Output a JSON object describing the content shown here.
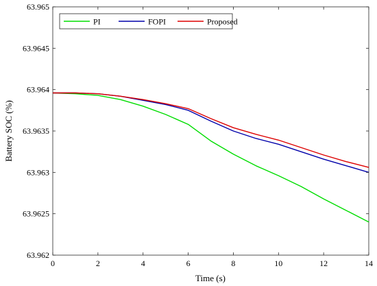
{
  "chart_data": {
    "type": "line",
    "xlabel": "Time (s)",
    "ylabel": "Battery SOC (%)",
    "xlim": [
      0,
      14
    ],
    "ylim": [
      63.962,
      63.965
    ],
    "xticks": [
      0,
      2,
      4,
      6,
      8,
      10,
      12,
      14
    ],
    "xtick_labels": [
      "0",
      "2",
      "4",
      "6",
      "8",
      "10",
      "12",
      "14"
    ],
    "yticks": [
      63.962,
      63.9625,
      63.963,
      63.9635,
      63.964,
      63.9645,
      63.965
    ],
    "ytick_labels": [
      "63.962",
      "63.9625",
      "63.963",
      "63.9635",
      "63.964",
      "63.9645",
      "63.965"
    ],
    "grid": false,
    "legend_position": "top-left",
    "series": [
      {
        "name": "PI",
        "color": "#00dd00",
        "x": [
          0,
          1,
          2,
          3,
          4,
          5,
          6,
          7,
          8,
          9,
          10,
          11,
          12,
          13,
          14
        ],
        "y": [
          63.96396,
          63.96395,
          63.96393,
          63.96388,
          63.9638,
          63.9637,
          63.96358,
          63.96338,
          63.96322,
          63.96308,
          63.96296,
          63.96283,
          63.96268,
          63.96254,
          63.9624
        ]
      },
      {
        "name": "FOPI",
        "color": "#0000aa",
        "x": [
          0,
          1,
          2,
          3,
          4,
          5,
          6,
          7,
          8,
          9,
          10,
          11,
          12,
          13,
          14
        ],
        "y": [
          63.96396,
          63.96396,
          63.96395,
          63.96392,
          63.96387,
          63.96382,
          63.96375,
          63.96362,
          63.9635,
          63.96341,
          63.96334,
          63.96325,
          63.96316,
          63.96308,
          63.963
        ]
      },
      {
        "name": "Proposed",
        "color": "#dd0000",
        "x": [
          0,
          1,
          2,
          3,
          4,
          5,
          6,
          7,
          8,
          9,
          10,
          11,
          12,
          13,
          14
        ],
        "y": [
          63.96396,
          63.96396,
          63.96395,
          63.96392,
          63.96388,
          63.96383,
          63.96377,
          63.96365,
          63.96354,
          63.96346,
          63.96339,
          63.9633,
          63.96321,
          63.96313,
          63.96306
        ]
      }
    ]
  }
}
